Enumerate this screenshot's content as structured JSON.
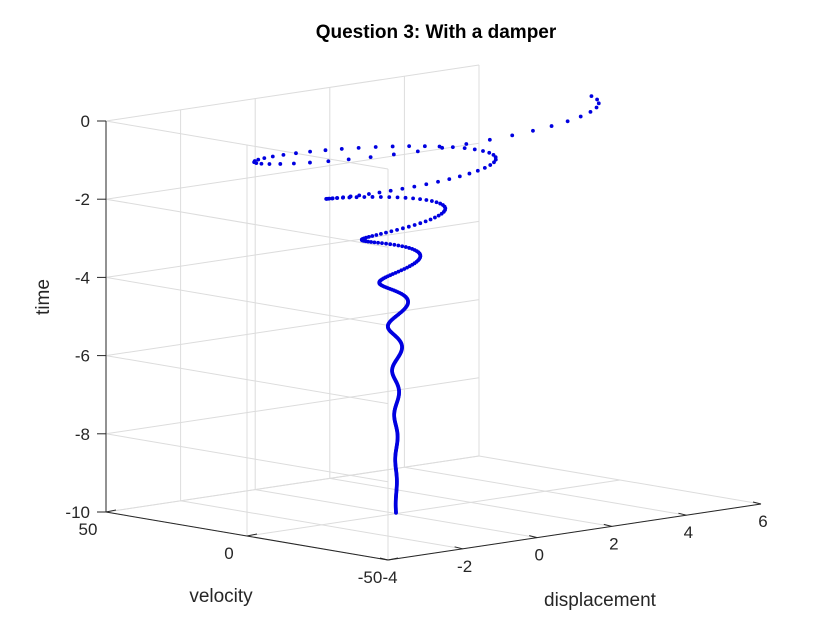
{
  "chart_data": {
    "type": "scatter3d",
    "title": "Question 3: With a damper",
    "xlabel": "displacement",
    "ylabel": "velocity",
    "zlabel": "time",
    "xlim": [
      -4,
      6
    ],
    "ylim": [
      -50,
      50
    ],
    "zlim": [
      -10,
      0
    ],
    "xticks": [
      -4,
      -2,
      0,
      2,
      4,
      6
    ],
    "yticks": [
      -50,
      0,
      50
    ],
    "zticks": [
      -10,
      -8,
      -6,
      -4,
      -2,
      0
    ],
    "grid": true,
    "marker_color": "#0000e0",
    "series": [
      {
        "model": "damped_oscillation",
        "initial_displacement": 5,
        "initial_velocity": 0,
        "angular_frequency": 5.5,
        "decay_rate": 0.62,
        "t_start": 0,
        "t_end": 10,
        "time_sign": -1
      }
    ]
  }
}
